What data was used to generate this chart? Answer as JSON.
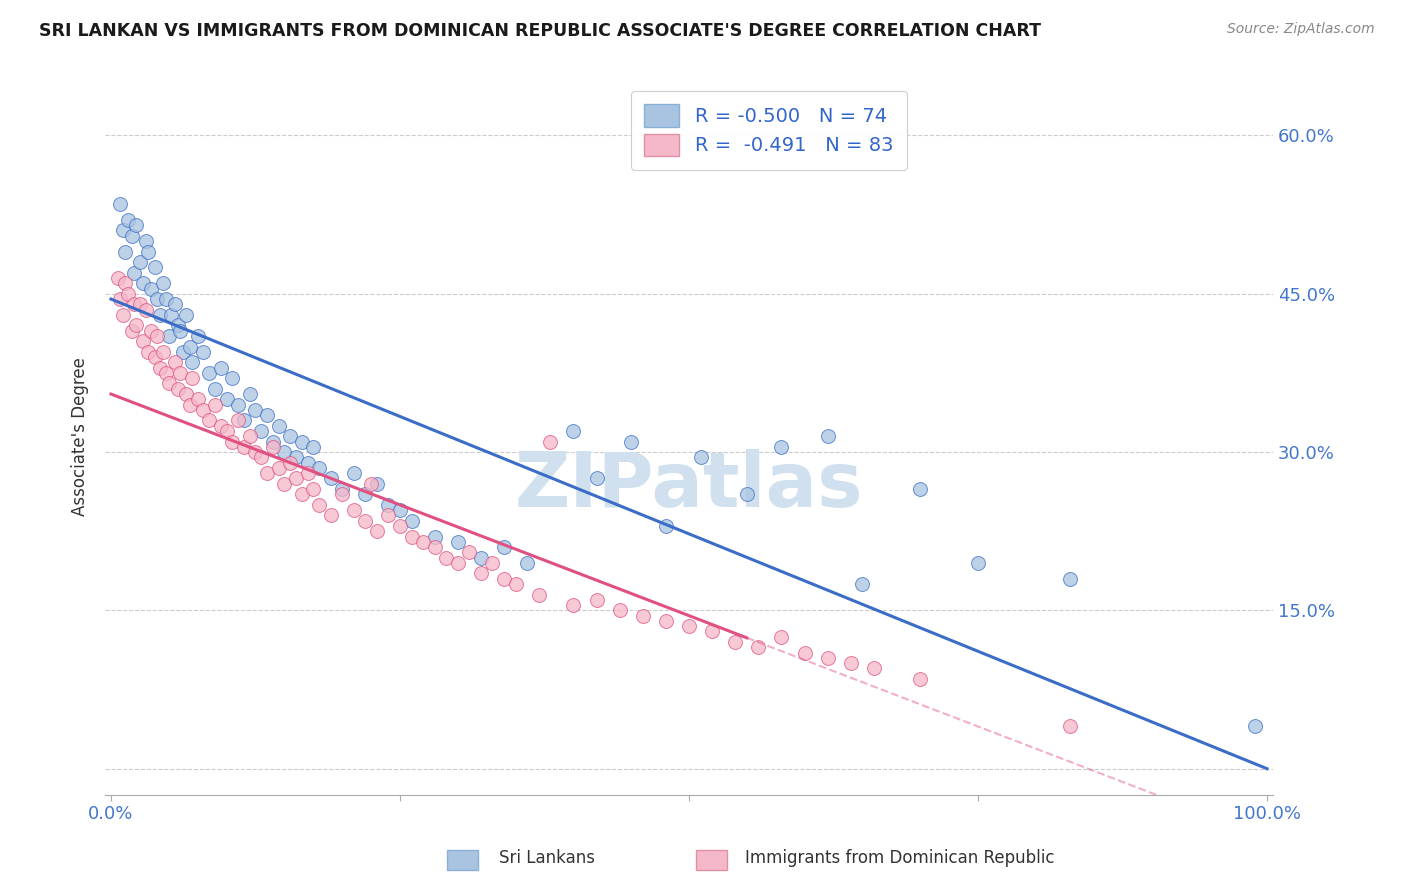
{
  "title": "SRI LANKAN VS IMMIGRANTS FROM DOMINICAN REPUBLIC ASSOCIATE'S DEGREE CORRELATION CHART",
  "source": "Source: ZipAtlas.com",
  "ylabel": "Associate's Degree",
  "ytick_vals": [
    0.0,
    0.15,
    0.3,
    0.45,
    0.6
  ],
  "ytick_labels_right": [
    "",
    "15.0%",
    "30.0%",
    "45.0%",
    "60.0%"
  ],
  "legend_label1": "Sri Lankans",
  "legend_label2": "Immigrants from Dominican Republic",
  "R1": "-0.500",
  "N1": "74",
  "R2": "-0.491",
  "N2": "83",
  "color_blue": "#a8c4e0",
  "color_pink": "#f4b8c8",
  "line_blue": "#3b6cc7",
  "line_pink": "#e05080",
  "watermark_color": "#d0e0ef",
  "bg_color": "#ffffff",
  "grid_color": "#cccccc",
  "blue_intercept": 0.445,
  "blue_slope": -0.445,
  "pink_intercept": 0.355,
  "pink_slope": -0.42,
  "blue_scatter_x": [
    0.008,
    0.01,
    0.012,
    0.015,
    0.018,
    0.02,
    0.022,
    0.025,
    0.028,
    0.03,
    0.032,
    0.035,
    0.038,
    0.04,
    0.042,
    0.045,
    0.048,
    0.05,
    0.052,
    0.055,
    0.058,
    0.06,
    0.062,
    0.065,
    0.068,
    0.07,
    0.075,
    0.08,
    0.085,
    0.09,
    0.095,
    0.1,
    0.105,
    0.11,
    0.115,
    0.12,
    0.125,
    0.13,
    0.135,
    0.14,
    0.145,
    0.15,
    0.155,
    0.16,
    0.165,
    0.17,
    0.175,
    0.18,
    0.19,
    0.2,
    0.21,
    0.22,
    0.23,
    0.24,
    0.25,
    0.26,
    0.28,
    0.3,
    0.32,
    0.34,
    0.36,
    0.4,
    0.42,
    0.45,
    0.48,
    0.51,
    0.55,
    0.58,
    0.62,
    0.65,
    0.7,
    0.75,
    0.83,
    0.99
  ],
  "blue_scatter_y": [
    0.535,
    0.51,
    0.49,
    0.52,
    0.505,
    0.47,
    0.515,
    0.48,
    0.46,
    0.5,
    0.49,
    0.455,
    0.475,
    0.445,
    0.43,
    0.46,
    0.445,
    0.41,
    0.43,
    0.44,
    0.42,
    0.415,
    0.395,
    0.43,
    0.4,
    0.385,
    0.41,
    0.395,
    0.375,
    0.36,
    0.38,
    0.35,
    0.37,
    0.345,
    0.33,
    0.355,
    0.34,
    0.32,
    0.335,
    0.31,
    0.325,
    0.3,
    0.315,
    0.295,
    0.31,
    0.29,
    0.305,
    0.285,
    0.275,
    0.265,
    0.28,
    0.26,
    0.27,
    0.25,
    0.245,
    0.235,
    0.22,
    0.215,
    0.2,
    0.21,
    0.195,
    0.32,
    0.275,
    0.31,
    0.23,
    0.295,
    0.26,
    0.305,
    0.315,
    0.175,
    0.265,
    0.195,
    0.18,
    0.04
  ],
  "pink_scatter_x": [
    0.006,
    0.008,
    0.01,
    0.012,
    0.015,
    0.018,
    0.02,
    0.022,
    0.025,
    0.028,
    0.03,
    0.032,
    0.035,
    0.038,
    0.04,
    0.042,
    0.045,
    0.048,
    0.05,
    0.055,
    0.058,
    0.06,
    0.065,
    0.068,
    0.07,
    0.075,
    0.08,
    0.085,
    0.09,
    0.095,
    0.1,
    0.105,
    0.11,
    0.115,
    0.12,
    0.125,
    0.13,
    0.135,
    0.14,
    0.145,
    0.15,
    0.155,
    0.16,
    0.165,
    0.17,
    0.175,
    0.18,
    0.19,
    0.2,
    0.21,
    0.22,
    0.225,
    0.23,
    0.24,
    0.25,
    0.26,
    0.27,
    0.28,
    0.29,
    0.3,
    0.31,
    0.32,
    0.33,
    0.34,
    0.35,
    0.37,
    0.38,
    0.4,
    0.42,
    0.44,
    0.46,
    0.48,
    0.5,
    0.52,
    0.54,
    0.56,
    0.58,
    0.6,
    0.62,
    0.64,
    0.66,
    0.7,
    0.83
  ],
  "pink_scatter_y": [
    0.465,
    0.445,
    0.43,
    0.46,
    0.45,
    0.415,
    0.44,
    0.42,
    0.44,
    0.405,
    0.435,
    0.395,
    0.415,
    0.39,
    0.41,
    0.38,
    0.395,
    0.375,
    0.365,
    0.385,
    0.36,
    0.375,
    0.355,
    0.345,
    0.37,
    0.35,
    0.34,
    0.33,
    0.345,
    0.325,
    0.32,
    0.31,
    0.33,
    0.305,
    0.315,
    0.3,
    0.295,
    0.28,
    0.305,
    0.285,
    0.27,
    0.29,
    0.275,
    0.26,
    0.28,
    0.265,
    0.25,
    0.24,
    0.26,
    0.245,
    0.235,
    0.27,
    0.225,
    0.24,
    0.23,
    0.22,
    0.215,
    0.21,
    0.2,
    0.195,
    0.205,
    0.185,
    0.195,
    0.18,
    0.175,
    0.165,
    0.31,
    0.155,
    0.16,
    0.15,
    0.145,
    0.14,
    0.135,
    0.13,
    0.12,
    0.115,
    0.125,
    0.11,
    0.105,
    0.1,
    0.095,
    0.085,
    0.04
  ]
}
